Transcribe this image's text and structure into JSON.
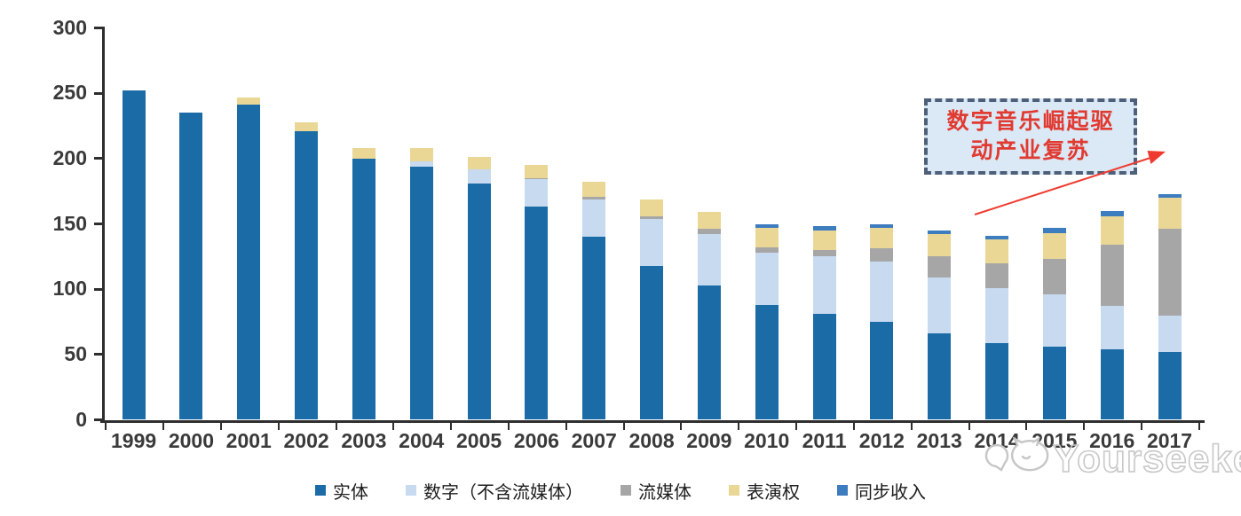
{
  "chart_data": {
    "type": "bar",
    "stacked": true,
    "categories": [
      "1999",
      "2000",
      "2001",
      "2002",
      "2003",
      "2004",
      "2005",
      "2006",
      "2007",
      "2008",
      "2009",
      "2010",
      "2011",
      "2012",
      "2013",
      "2014",
      "2015",
      "2016",
      "2017"
    ],
    "series": [
      {
        "name": "实体",
        "color": "#1B6BA7",
        "values": [
          252,
          235,
          241,
          221,
          200,
          194,
          181,
          163,
          140,
          118,
          103,
          88,
          81,
          75,
          66,
          59,
          56,
          54,
          52
        ]
      },
      {
        "name": "数字（不含流媒体）",
        "color": "#C7DAF0",
        "values": [
          0,
          0,
          0,
          0,
          0,
          4,
          11,
          21,
          29,
          36,
          39,
          40,
          44,
          46,
          43,
          42,
          40,
          33,
          28
        ]
      },
      {
        "name": "流媒体",
        "color": "#A6A6A6",
        "values": [
          0,
          0,
          0,
          0,
          0,
          0,
          0,
          1,
          2,
          2,
          4,
          4,
          5,
          10,
          16,
          19,
          27,
          47,
          66
        ]
      },
      {
        "name": "表演权",
        "color": "#EAD795",
        "values": [
          0,
          0,
          6,
          7,
          8,
          10,
          9,
          10,
          11,
          13,
          13,
          15,
          15,
          16,
          17,
          18,
          20,
          22,
          24
        ]
      },
      {
        "name": "同步收入",
        "color": "#3C7CBF",
        "values": [
          0,
          0,
          0,
          0,
          0,
          0,
          0,
          0,
          0,
          0,
          0,
          3,
          3,
          3,
          3,
          3,
          4,
          4,
          3
        ]
      }
    ],
    "title": "",
    "xlabel": "",
    "ylabel": "",
    "ylim": [
      0,
      300
    ],
    "ytick_step": 50,
    "grid": false,
    "legend_position": "bottom"
  },
  "annotation": {
    "full_text": "数字音乐崛起驱动产业复苏",
    "line1": "数字音乐崛起驱",
    "line2": "动产业复苏",
    "text_color": "#e03a31",
    "box_fill": "#dbe8f5",
    "box_border_color": "#4e6079",
    "arrow_color": "#ef3b2f"
  },
  "watermark": {
    "text": "Yourseeker",
    "icon": "chat-bubble-cat-logo-icon",
    "color": "#c8c8c8"
  }
}
